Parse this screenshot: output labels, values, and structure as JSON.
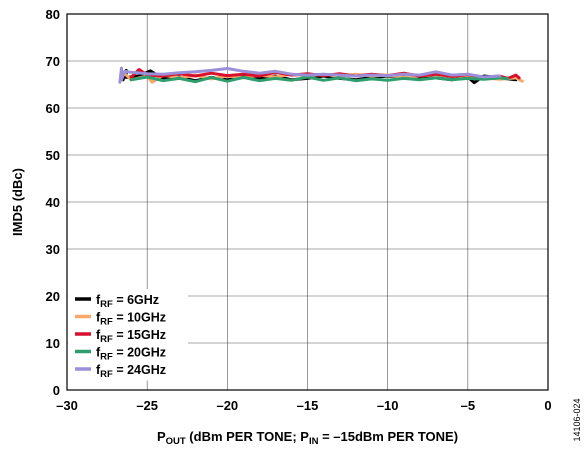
{
  "chart_data": {
    "type": "line",
    "xlabel": {
      "main": "P",
      "sub": "OUT",
      "mid": " (dBm PER TONE; P",
      "sub2": "IN",
      "end": " = –15dBm PER TONE)"
    },
    "ylabel": "IMD5 (dBc)",
    "xlim": [
      -30,
      0
    ],
    "ylim": [
      0,
      80
    ],
    "xticks": [
      -30,
      -25,
      -20,
      -15,
      -10,
      -5,
      0
    ],
    "xtick_labels": [
      "–30",
      "–25",
      "–20",
      "–15",
      "–10",
      "–5",
      "0"
    ],
    "yticks": [
      0,
      10,
      20,
      30,
      40,
      50,
      60,
      70,
      80
    ],
    "ytick_labels": [
      "0",
      "10",
      "20",
      "30",
      "40",
      "50",
      "60",
      "70",
      "80"
    ],
    "grid": true,
    "legend_position": "bottom-left",
    "figure_id": "14106-024",
    "series": [
      {
        "name_main": "f",
        "name_sub": "RF",
        "name_rest": " = 6GHz",
        "color": "#000000",
        "x": [
          -26.5,
          -26.3,
          -26.3,
          -25.5,
          -24.8,
          -24.0,
          -23.0,
          -22.0,
          -21.0,
          -20.0,
          -19.0,
          -18.0,
          -17.0,
          -16.0,
          -15.0,
          -14.0,
          -13.0,
          -12.0,
          -11.0,
          -10.0,
          -9.0,
          -8.0,
          -7.0,
          -6.0,
          -5.0,
          -4.6,
          -4.0,
          -3.0,
          -2.0
        ],
        "y": [
          66.0,
          68.0,
          66.5,
          66.8,
          67.9,
          66.2,
          66.6,
          65.8,
          66.5,
          66.0,
          66.6,
          66.2,
          66.8,
          66.0,
          66.3,
          66.8,
          66.3,
          66.0,
          66.5,
          66.8,
          66.6,
          66.2,
          66.4,
          66.0,
          66.6,
          65.4,
          66.8,
          66.4,
          66.0
        ]
      },
      {
        "name_main": "f",
        "name_sub": "RF",
        "name_rest": " = 10GHz",
        "color": "#F8A86A",
        "x": [
          -26.5,
          -26.3,
          -26.0,
          -25.0,
          -24.7,
          -24.0,
          -23.0,
          -22.0,
          -21.0,
          -20.0,
          -19.0,
          -18.0,
          -17.0,
          -16.0,
          -15.0,
          -14.0,
          -13.0,
          -12.0,
          -11.0,
          -10.0,
          -9.0,
          -8.0,
          -7.0,
          -6.0,
          -5.0,
          -4.0,
          -3.0,
          -2.0,
          -1.6
        ],
        "y": [
          67.5,
          67.0,
          66.0,
          66.8,
          65.5,
          67.0,
          66.4,
          67.0,
          66.2,
          66.8,
          66.4,
          67.0,
          66.6,
          67.2,
          66.8,
          67.2,
          66.7,
          67.2,
          66.8,
          67.0,
          66.5,
          66.8,
          67.1,
          66.7,
          66.9,
          66.4,
          66.1,
          66.4,
          65.7
        ]
      },
      {
        "name_main": "f",
        "name_sub": "RF",
        "name_rest": " = 15GHz",
        "color": "#D8102C",
        "x": [
          -26.0,
          -25.5,
          -25.0,
          -24.0,
          -23.0,
          -22.0,
          -21.0,
          -20.0,
          -19.0,
          -18.0,
          -17.0,
          -16.0,
          -15.0,
          -14.0,
          -13.0,
          -12.0,
          -11.0,
          -10.0,
          -9.0,
          -8.0,
          -7.0,
          -6.0,
          -5.0,
          -4.0,
          -3.0,
          -2.5,
          -2.0,
          -1.8
        ],
        "y": [
          66.5,
          68.2,
          67.0,
          66.8,
          67.3,
          66.8,
          67.4,
          66.9,
          67.2,
          66.8,
          67.6,
          67.0,
          67.3,
          66.9,
          67.3,
          66.8,
          67.2,
          66.9,
          67.4,
          66.8,
          67.2,
          66.7,
          67.1,
          66.5,
          66.8,
          66.3,
          67.0,
          66.4
        ]
      },
      {
        "name_main": "f",
        "name_sub": "RF",
        "name_rest": " = 20GHz",
        "color": "#2E9E6E",
        "x": [
          -26.0,
          -25.0,
          -24.0,
          -23.0,
          -22.0,
          -21.0,
          -20.0,
          -19.0,
          -18.0,
          -17.0,
          -16.0,
          -15.0,
          -14.0,
          -13.0,
          -12.0,
          -11.0,
          -10.0,
          -9.0,
          -8.0,
          -7.0,
          -6.0,
          -5.0,
          -4.0,
          -3.0,
          -2.5
        ],
        "y": [
          66.0,
          66.6,
          65.8,
          66.3,
          65.6,
          66.5,
          65.7,
          66.5,
          65.8,
          66.3,
          65.9,
          66.6,
          65.9,
          66.4,
          65.8,
          66.2,
          65.9,
          66.3,
          66.0,
          66.4,
          66.0,
          66.3,
          66.1,
          66.4,
          66.2
        ]
      },
      {
        "name_main": "f",
        "name_sub": "RF",
        "name_rest": " = 24GHz",
        "color": "#9A8FD8",
        "x": [
          -26.7,
          -26.6,
          -26.6,
          -26.4,
          -26.0,
          -25.0,
          -24.0,
          -23.0,
          -22.0,
          -21.0,
          -20.0,
          -19.0,
          -18.0,
          -17.0,
          -16.0,
          -15.0,
          -14.0,
          -13.0,
          -12.0,
          -11.0,
          -10.0,
          -9.0,
          -8.0,
          -7.0,
          -6.0,
          -5.0,
          -4.0,
          -3.0
        ],
        "y": [
          65.5,
          68.5,
          66.0,
          67.8,
          67.6,
          67.3,
          67.2,
          67.5,
          67.7,
          68.0,
          68.4,
          67.8,
          67.4,
          67.8,
          67.2,
          67.0,
          67.2,
          67.0,
          66.8,
          67.0,
          66.9,
          67.2,
          67.0,
          67.7,
          67.0,
          67.2,
          66.6,
          66.8
        ]
      }
    ]
  }
}
